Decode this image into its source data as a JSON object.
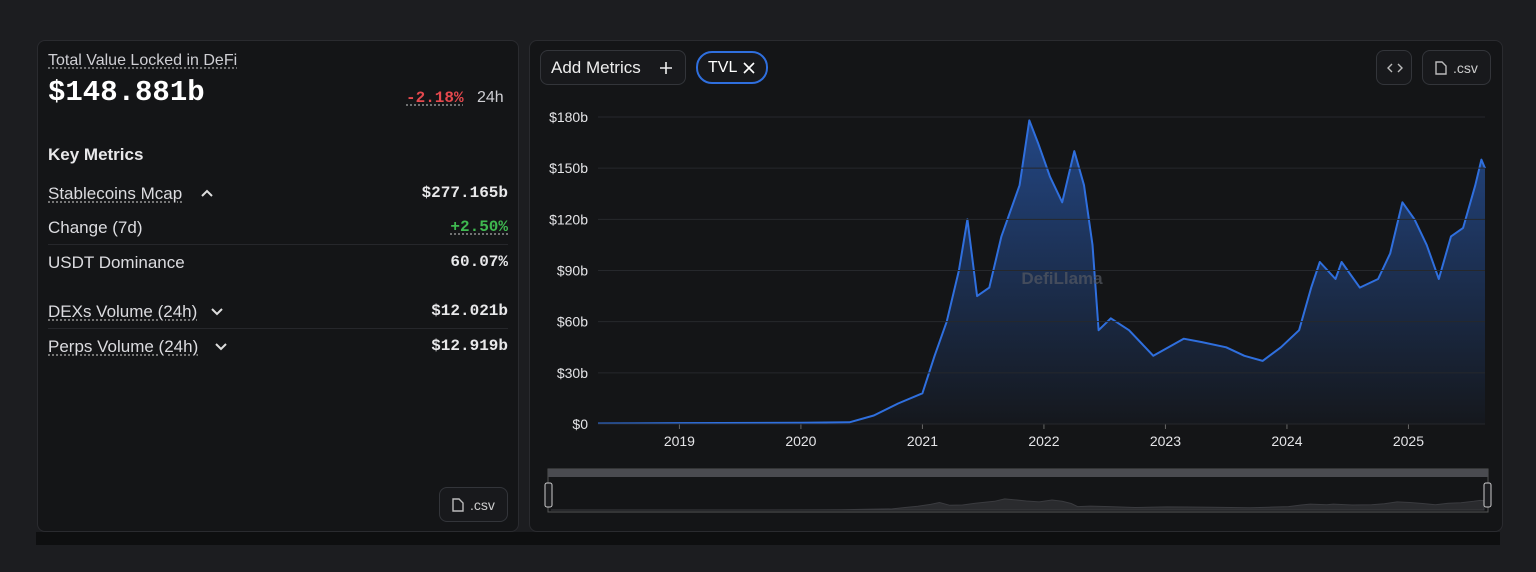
{
  "summary": {
    "title": "Total Value Locked in DeFi",
    "value": "$148.881b",
    "change": "-2.18%",
    "change_period": "24h"
  },
  "key_metrics": {
    "title": "Key Metrics",
    "rows": [
      {
        "label": "Stablecoins Mcap",
        "value": "$277.165b"
      },
      {
        "label": "Change (7d)",
        "value": "+2.50%"
      },
      {
        "label": "USDT Dominance",
        "value": "60.07%"
      },
      {
        "label": "DEXs Volume (24h)",
        "value": "$12.021b"
      },
      {
        "label": "Perps Volume (24h)",
        "value": "$12.919b"
      }
    ]
  },
  "buttons": {
    "csv_left": ".csv",
    "add_metrics": "Add Metrics",
    "csv_right": ".csv"
  },
  "chart_data": {
    "type": "area",
    "watermark": "DefiLlama",
    "x": [
      2018.33,
      2019,
      2020,
      2020.4,
      2020.6,
      2020.8,
      2021.0,
      2021.1,
      2021.2,
      2021.3,
      2021.37,
      2021.45,
      2021.55,
      2021.65,
      2021.8,
      2021.88,
      2021.95,
      2022.05,
      2022.15,
      2022.25,
      2022.33,
      2022.4,
      2022.45,
      2022.55,
      2022.7,
      2022.9,
      2023.0,
      2023.15,
      2023.3,
      2023.5,
      2023.65,
      2023.8,
      2023.95,
      2024.1,
      2024.2,
      2024.27,
      2024.4,
      2024.45,
      2024.6,
      2024.75,
      2024.85,
      2024.95,
      2025.05,
      2025.15,
      2025.25,
      2025.35,
      2025.45,
      2025.55,
      2025.6,
      2025.63
    ],
    "series": [
      {
        "name": "TVL",
        "color": "#2f6fde",
        "values": [
          0.3,
          0.5,
          0.7,
          1,
          5,
          12,
          18,
          40,
          60,
          90,
          120,
          75,
          80,
          110,
          140,
          178,
          165,
          145,
          130,
          160,
          140,
          105,
          55,
          62,
          55,
          40,
          44,
          50,
          48,
          45,
          40,
          37,
          45,
          55,
          80,
          95,
          85,
          95,
          80,
          85,
          100,
          130,
          120,
          105,
          85,
          110,
          115,
          140,
          155,
          150
        ]
      }
    ],
    "xlim": [
      2018.33,
      2025.63
    ],
    "xticks": [
      2019,
      2020,
      2021,
      2022,
      2023,
      2024,
      2025
    ],
    "ylim": [
      0,
      180
    ],
    "yticks": [
      {
        "value": 0,
        "label": "$0"
      },
      {
        "value": 30,
        "label": "$30b"
      },
      {
        "value": 60,
        "label": "$60b"
      },
      {
        "value": 90,
        "label": "$90b"
      },
      {
        "value": 120,
        "label": "$120b"
      },
      {
        "value": 150,
        "label": "$150b"
      },
      {
        "value": 180,
        "label": "$180b"
      }
    ],
    "grid": true
  }
}
